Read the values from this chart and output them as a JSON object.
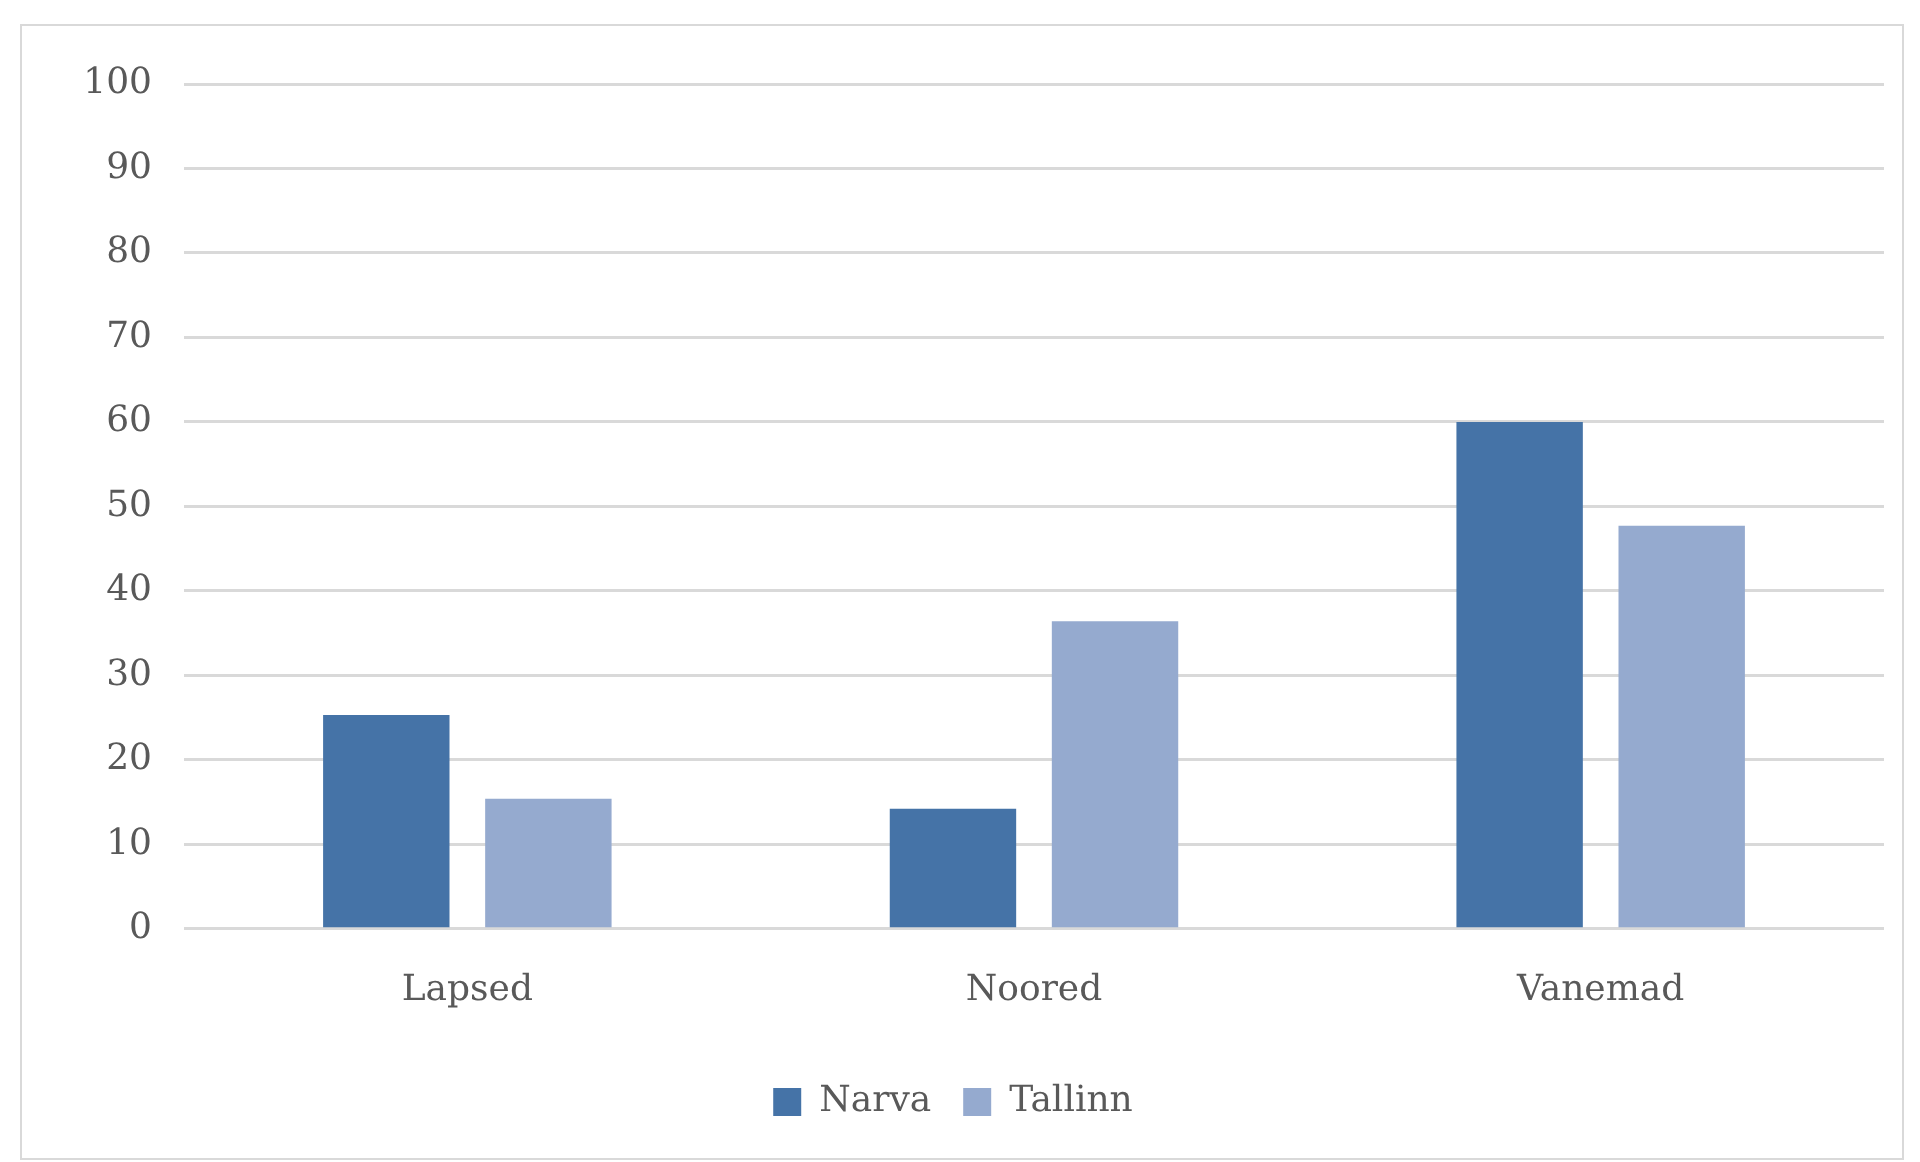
{
  "chart_data": {
    "type": "bar",
    "categories": [
      "Lapsed",
      "Noored",
      "Vanemad"
    ],
    "series": [
      {
        "name": "Narva",
        "color": "#4573a7",
        "values": [
          25.3,
          14.2,
          60
        ]
      },
      {
        "name": "Tallinn",
        "color": "#95aacf",
        "values": [
          15.4,
          36.4,
          47.7
        ]
      }
    ],
    "ylim": [
      0,
      100
    ],
    "yticks": [
      0,
      10,
      20,
      30,
      40,
      50,
      60,
      70,
      80,
      90,
      100
    ],
    "grid": "y",
    "legend": "bottom"
  }
}
